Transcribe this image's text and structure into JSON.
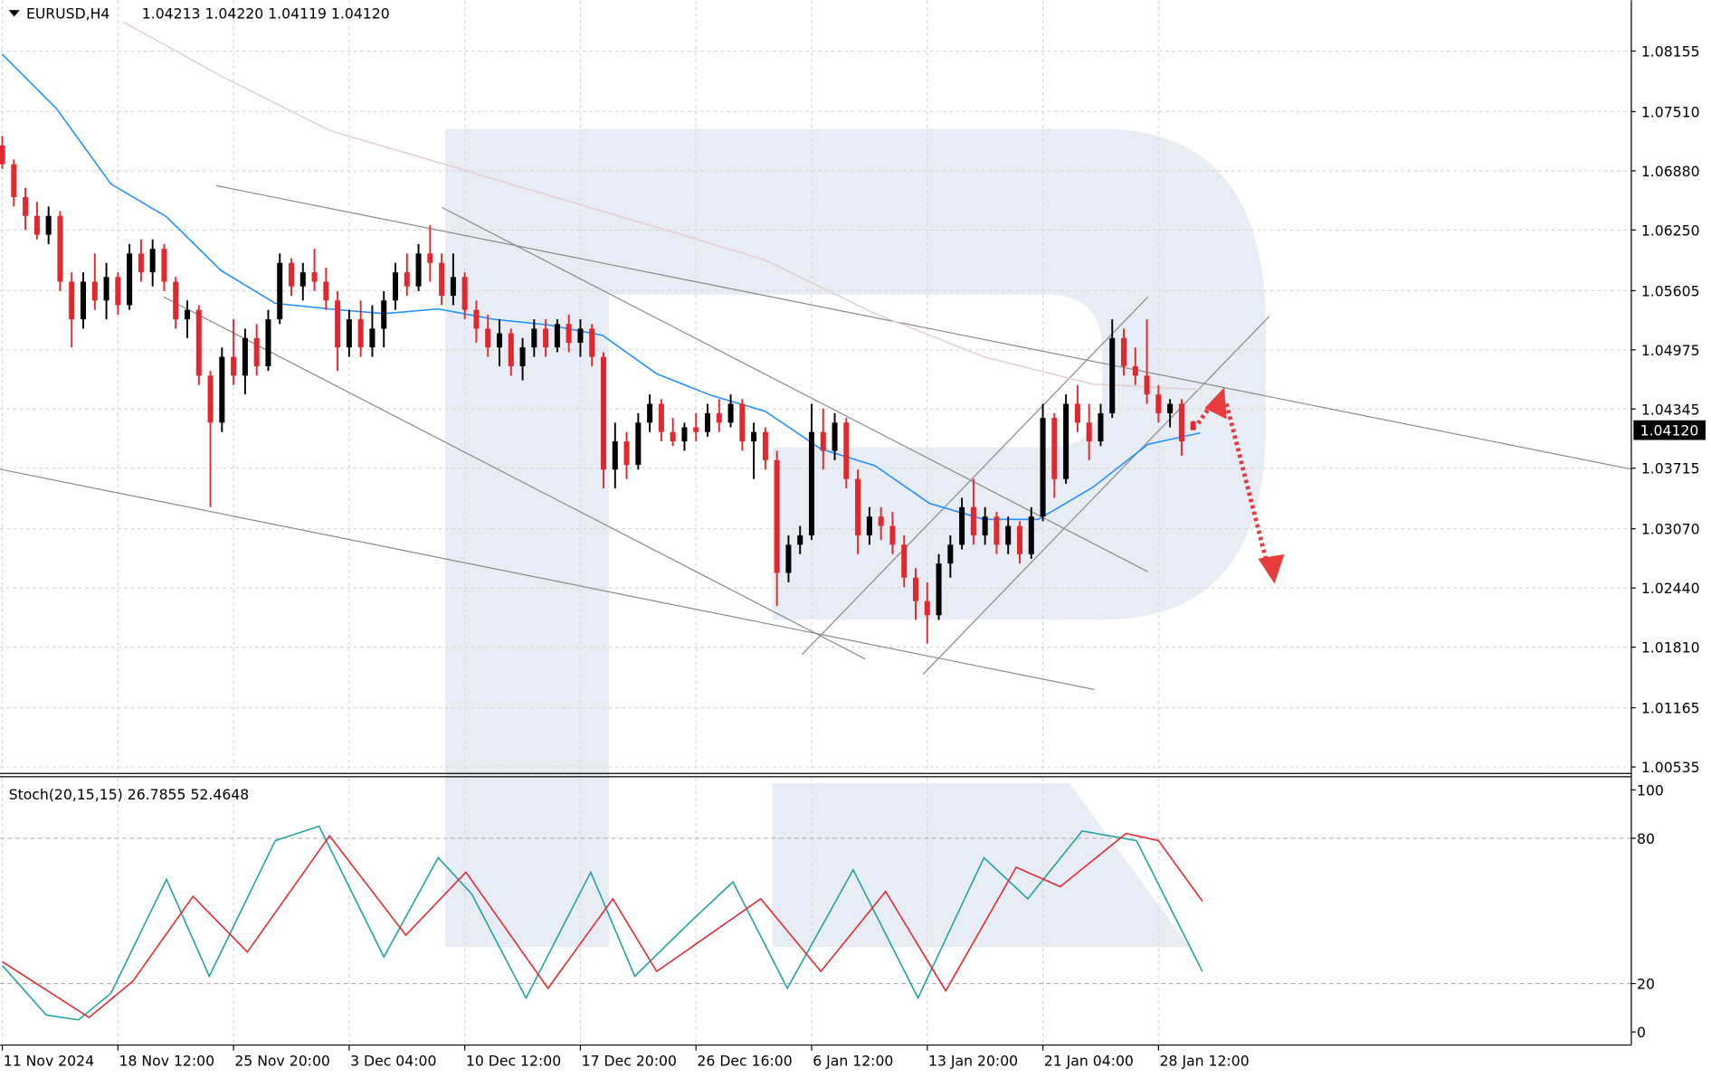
{
  "chart_data": {
    "type": "candlestick",
    "title": "EURUSD,H4",
    "ohlc_text": "1.04213 1.04220 1.04119 1.04120",
    "up_color": "#000000",
    "down_color": "#e0282e",
    "xlim": [
      -0.2,
      140.9
    ],
    "xticks": [
      {
        "value": 0,
        "label": "11 Nov 2024"
      },
      {
        "value": 10,
        "label": "18 Nov 12:00"
      },
      {
        "value": 20,
        "label": "25 Nov 20:00"
      },
      {
        "value": 30,
        "label": "3 Dec 04:00"
      },
      {
        "value": 40,
        "label": "10 Dec 12:00"
      },
      {
        "value": 50,
        "label": "17 Dec 20:00"
      },
      {
        "value": 60,
        "label": "26 Dec 16:00"
      },
      {
        "value": 70,
        "label": "6 Jan 12:00"
      },
      {
        "value": 80,
        "label": "13 Jan 20:00"
      },
      {
        "value": 90,
        "label": "21 Jan 04:00"
      },
      {
        "value": 100,
        "label": "28 Jan 12:00"
      }
    ],
    "ylim": [
      1.00477,
      1.08696
    ],
    "yticks": [
      1.08155,
      {
        "value": 1.0751,
        "label": "1.07510"
      },
      {
        "value": 1.0688,
        "label": "1.06880"
      },
      {
        "value": 1.0625,
        "label": "1.06250"
      },
      1.05605,
      1.04975,
      1.04345,
      1.03715,
      {
        "value": 1.0307,
        "label": "1.03070"
      },
      {
        "value": 1.0244,
        "label": "1.02440"
      },
      {
        "value": 1.0181,
        "label": "1.01810"
      },
      1.01165,
      1.00535
    ],
    "grid": true,
    "current_price": {
      "value": 1.0412,
      "label": "1.04120"
    },
    "open": [
      1.0715,
      1.0695,
      1.066,
      1.064,
      1.062,
      1.064,
      1.057,
      1.053,
      1.057,
      1.055,
      1.0575,
      1.0545,
      1.06,
      1.058,
      1.0605,
      1.057,
      1.053,
      1.054,
      1.047,
      1.042,
      1.049,
      1.047,
      1.051,
      1.048,
      1.053,
      1.059,
      1.0565,
      1.058,
      1.057,
      1.055,
      1.05,
      1.053,
      1.05,
      1.052,
      1.055,
      1.058,
      1.0565,
      1.06,
      1.059,
      1.0555,
      1.0575,
      1.054,
      1.052,
      1.05,
      1.0515,
      1.048,
      1.05,
      1.052,
      1.05,
      1.0525,
      1.0505,
      1.052,
      1.049,
      1.037,
      1.04,
      1.0375,
      1.042,
      1.044,
      1.041,
      1.04,
      1.0415,
      1.041,
      1.043,
      1.042,
      1.044,
      1.04,
      1.041,
      1.038,
      1.026,
      1.029,
      1.03,
      1.041,
      1.039,
      1.042,
      1.036,
      1.03,
      1.032,
      1.031,
      1.029,
      1.0255,
      1.023,
      1.0215,
      1.027,
      1.029,
      1.033,
      1.03,
      1.032,
      1.029,
      1.031,
      1.028,
      1.032,
      1.0425,
      1.036,
      1.044,
      1.042,
      1.04,
      1.043,
      1.051,
      1.048,
      1.047,
      1.045,
      1.043,
      1.044,
      1.0421
    ],
    "high": [
      1.0725,
      1.07,
      1.067,
      1.0655,
      1.065,
      1.0645,
      1.058,
      1.058,
      1.06,
      1.059,
      1.058,
      1.061,
      1.0615,
      1.0615,
      1.061,
      1.0575,
      1.055,
      1.0545,
      1.0475,
      1.05,
      1.053,
      1.052,
      1.0525,
      1.054,
      1.06,
      1.0595,
      1.059,
      1.0605,
      1.0585,
      1.056,
      1.054,
      1.055,
      1.0545,
      1.056,
      1.059,
      1.06,
      1.061,
      1.063,
      1.06,
      1.06,
      1.058,
      1.055,
      1.0535,
      1.053,
      1.052,
      1.051,
      1.053,
      1.053,
      1.053,
      1.0535,
      1.053,
      1.0525,
      1.0495,
      1.042,
      1.041,
      1.043,
      1.045,
      1.0445,
      1.0425,
      1.042,
      1.043,
      1.044,
      1.0445,
      1.045,
      1.0445,
      1.042,
      1.0415,
      1.039,
      1.03,
      1.031,
      1.044,
      1.0435,
      1.043,
      1.0425,
      1.037,
      1.033,
      1.033,
      1.0325,
      1.03,
      1.0265,
      1.025,
      1.028,
      1.03,
      1.034,
      1.036,
      1.033,
      1.0325,
      1.032,
      1.0315,
      1.033,
      1.044,
      1.043,
      1.045,
      1.046,
      1.044,
      1.044,
      1.053,
      1.052,
      1.05,
      1.053,
      1.046,
      1.0445,
      1.0445,
      1.0422
    ],
    "low": [
      1.069,
      1.065,
      1.0625,
      1.0615,
      1.061,
      1.056,
      1.05,
      1.052,
      1.054,
      1.053,
      1.0535,
      1.054,
      1.057,
      1.0565,
      1.056,
      1.052,
      1.051,
      1.046,
      1.033,
      1.041,
      1.046,
      1.045,
      1.047,
      1.0475,
      1.0525,
      1.0555,
      1.055,
      1.056,
      1.054,
      1.0475,
      1.049,
      1.049,
      1.049,
      1.05,
      1.054,
      1.0555,
      1.056,
      1.057,
      1.0545,
      1.0545,
      1.053,
      1.0505,
      1.049,
      1.048,
      1.047,
      1.0465,
      1.049,
      1.049,
      1.0495,
      1.0495,
      1.049,
      1.048,
      1.035,
      1.035,
      1.036,
      1.037,
      1.041,
      1.04,
      1.0395,
      1.039,
      1.04,
      1.0405,
      1.041,
      1.0415,
      1.039,
      1.036,
      1.037,
      1.0225,
      1.025,
      1.028,
      1.0295,
      1.037,
      1.038,
      1.035,
      1.028,
      1.029,
      1.0295,
      1.028,
      1.0245,
      1.021,
      1.0185,
      1.021,
      1.0255,
      1.0285,
      1.029,
      1.029,
      1.028,
      1.028,
      1.027,
      1.0275,
      1.0315,
      1.034,
      1.0355,
      1.041,
      1.038,
      1.0395,
      1.0425,
      1.047,
      1.046,
      1.044,
      1.042,
      1.0415,
      1.0385,
      1.0412
    ],
    "close": [
      1.0695,
      1.066,
      1.064,
      1.062,
      1.064,
      1.057,
      1.053,
      1.057,
      1.055,
      1.0575,
      1.0545,
      1.06,
      1.058,
      1.0605,
      1.057,
      1.053,
      1.054,
      1.047,
      1.042,
      1.049,
      1.047,
      1.051,
      1.048,
      1.053,
      1.059,
      1.0565,
      1.058,
      1.057,
      1.055,
      1.05,
      1.053,
      1.05,
      1.052,
      1.055,
      1.058,
      1.0565,
      1.06,
      1.059,
      1.0555,
      1.0575,
      1.054,
      1.052,
      1.05,
      1.0515,
      1.048,
      1.05,
      1.052,
      1.05,
      1.0525,
      1.0505,
      1.052,
      1.049,
      1.037,
      1.04,
      1.0375,
      1.042,
      1.044,
      1.041,
      1.04,
      1.0415,
      1.041,
      1.043,
      1.042,
      1.044,
      1.04,
      1.041,
      1.038,
      1.026,
      1.029,
      1.03,
      1.041,
      1.039,
      1.042,
      1.036,
      1.03,
      1.032,
      1.031,
      1.029,
      1.0255,
      1.023,
      1.0215,
      1.027,
      1.029,
      1.033,
      1.03,
      1.032,
      1.029,
      1.031,
      1.028,
      1.032,
      1.0425,
      1.036,
      1.044,
      1.042,
      1.04,
      1.043,
      1.051,
      1.048,
      1.047,
      1.045,
      1.043,
      1.044,
      1.04,
      1.0412
    ],
    "moving_averages": [
      {
        "color": "#1e90ff",
        "x": [
          0,
          4.7,
          9.4,
          14.2,
          18.9,
          23.6,
          28.3,
          33,
          37.7,
          42.5,
          47.2,
          51.9,
          56.6,
          61.3,
          66,
          70.8,
          75.5,
          80.2,
          84.9,
          89.6,
          94.3,
          99.1,
          103.6
        ],
        "values": [
          1.0812,
          1.0754,
          1.0674,
          1.0639,
          1.0582,
          1.0547,
          1.0541,
          1.0536,
          1.0541,
          1.053,
          1.0524,
          1.0513,
          1.0472,
          1.0449,
          1.0432,
          1.0392,
          1.0374,
          1.0334,
          1.0317,
          1.0317,
          1.0351,
          1.0397,
          1.0409
        ]
      },
      {
        "color": "#e6cfcf",
        "x": [
          10.4,
          18.9,
          28.3,
          37.7,
          47.2,
          56.6,
          66,
          75.5,
          84.9,
          94.3,
          103.8
        ],
        "values": [
          1.0847,
          1.0789,
          1.0731,
          1.0697,
          1.0662,
          1.0628,
          1.0593,
          1.0536,
          1.049,
          1.0461,
          1.0455
        ]
      }
    ],
    "indicator": {
      "label": "Stoch(20,15,15) 26.7855 52.4648",
      "ylim": [
        -5.4,
        104.95
      ],
      "yticks": [
        0,
        20,
        80,
        100
      ],
      "levels": [
        20,
        80
      ],
      "series": [
        {
          "color": "#20a0a0",
          "x": [
            0,
            3.8,
            6.6,
            9.4,
            14.2,
            17.9,
            23.6,
            27.4,
            33,
            37.7,
            40.6,
            45.3,
            50.9,
            54.7,
            59.4,
            63.2,
            67.9,
            73.6,
            79.2,
            84.9,
            88.7,
            93.4,
            98.1,
            103.8
          ],
          "values": [
            27.5,
            7,
            5,
            16,
            63,
            23,
            79,
            85,
            31,
            72,
            57,
            14,
            66,
            23,
            45,
            62,
            18,
            67,
            14,
            72,
            55,
            83,
            79,
            25
          ]
        },
        {
          "color": "#e0282e",
          "x": [
            0,
            7.5,
            11.3,
            16.5,
            21.2,
            28.3,
            34.9,
            40.1,
            47.2,
            52.8,
            56.6,
            65.6,
            70.8,
            76.4,
            81.6,
            87.7,
            91.5,
            97.2,
            100,
            103.8
          ],
          "values": [
            29,
            6,
            21,
            56,
            33,
            81,
            40,
            66,
            18,
            55,
            25,
            55,
            25,
            58,
            17,
            68,
            60,
            82,
            79,
            54
          ]
        }
      ]
    }
  }
}
